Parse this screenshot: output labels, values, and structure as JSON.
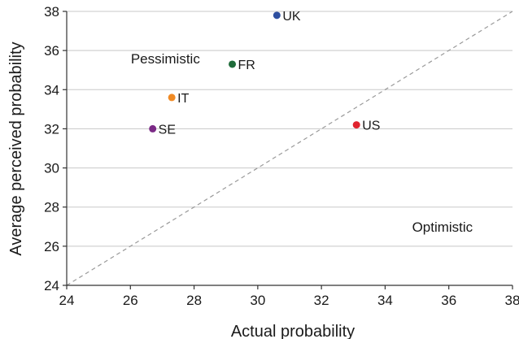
{
  "chart_data": {
    "type": "scatter",
    "title": "",
    "xlabel": "Actual probability",
    "ylabel": "Average perceived probability",
    "xlim": [
      24,
      38
    ],
    "ylim": [
      24,
      38
    ],
    "xticks": [
      24,
      26,
      28,
      30,
      32,
      34,
      36,
      38
    ],
    "yticks": [
      24,
      26,
      28,
      30,
      32,
      34,
      36,
      38
    ],
    "grid": "horizontal",
    "reference_line": {
      "style": "dashed",
      "from": [
        24,
        24
      ],
      "to": [
        38,
        38
      ]
    },
    "annotations": [
      {
        "text": "Pessimistic",
        "x": 27.1,
        "y": 35.6
      },
      {
        "text": "Optimistic",
        "x": 35.8,
        "y": 27.0
      }
    ],
    "points": [
      {
        "label": "UK",
        "x": 30.6,
        "y": 37.8,
        "color": "#2e4fa0"
      },
      {
        "label": "FR",
        "x": 29.2,
        "y": 35.3,
        "color": "#1f6b3a"
      },
      {
        "label": "IT",
        "x": 27.3,
        "y": 33.6,
        "color": "#f08a24"
      },
      {
        "label": "SE",
        "x": 26.7,
        "y": 32.0,
        "color": "#7b2a86"
      },
      {
        "label": "US",
        "x": 33.1,
        "y": 32.2,
        "color": "#e0232e"
      }
    ]
  }
}
